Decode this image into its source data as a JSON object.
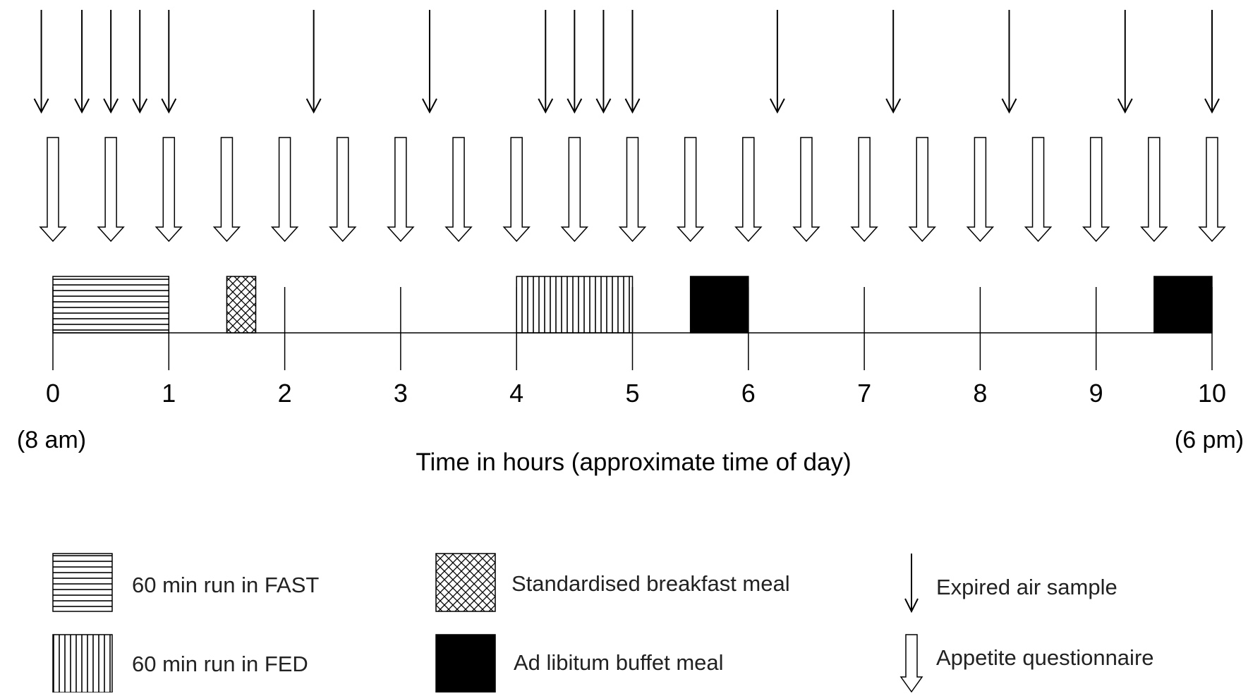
{
  "axis": {
    "ticks": [
      "0",
      "1",
      "2",
      "3",
      "4",
      "5",
      "6",
      "7",
      "8",
      "9",
      "10"
    ],
    "start_time": "(8 am)",
    "end_time": "(6 pm)",
    "title": "Time in hours (approximate time of day)"
  },
  "events": [
    {
      "name": "60 min run in FAST",
      "pattern": "horizontal-lines",
      "start": 0,
      "end": 1
    },
    {
      "name": "Standardised breakfast meal",
      "pattern": "crosshatch",
      "start": 1.5,
      "end": 1.75
    },
    {
      "name": "60 min run in FED",
      "pattern": "vertical-lines",
      "start": 4,
      "end": 5
    },
    {
      "name": "Ad libitum buffet meal",
      "pattern": "solid-black",
      "start": 5.5,
      "end": 6
    },
    {
      "name": "Ad libitum buffet meal",
      "pattern": "solid-black",
      "start": 9.5,
      "end": 10
    }
  ],
  "expired_air_samples_hours": [
    -0.1,
    0.25,
    0.5,
    0.75,
    1,
    2.25,
    3.25,
    4.25,
    4.5,
    4.75,
    5,
    6.25,
    7.25,
    8.25,
    9.25,
    10
  ],
  "appetite_questionnaire_hours": [
    0,
    0.5,
    1,
    1.5,
    2,
    2.5,
    3,
    3.5,
    4,
    4.5,
    5,
    5.5,
    6,
    6.5,
    7,
    7.5,
    8,
    8.5,
    9,
    9.5,
    10
  ],
  "legend": {
    "run_fast": "60 min run in FAST",
    "run_fed": "60 min run in FED",
    "breakfast": "Standardised breakfast meal",
    "buffet": "Ad libitum buffet meal",
    "expired_air": "Expired air sample",
    "appetite": "Appetite questionnaire"
  }
}
